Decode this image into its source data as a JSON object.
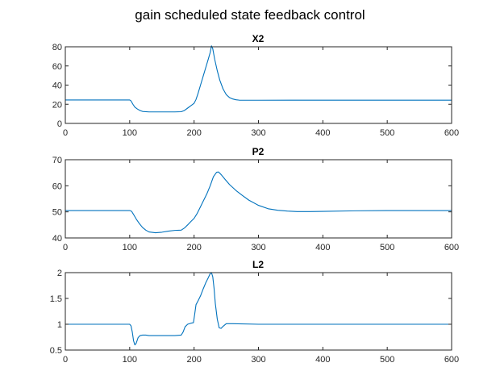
{
  "figure_title": "gain scheduled state feedback control",
  "colors": {
    "series": "#0072BD",
    "axes": "#262626"
  },
  "chart_data": [
    {
      "type": "line",
      "title": "X2",
      "xlim": [
        0,
        600
      ],
      "ylim": [
        0,
        80
      ],
      "xticks": [
        0,
        100,
        200,
        300,
        400,
        500,
        600
      ],
      "yticks": [
        0,
        20,
        40,
        60,
        80
      ],
      "grid": false,
      "series": [
        {
          "x": [
            0,
            100,
            102,
            105,
            108,
            112,
            116,
            120,
            130,
            150,
            170,
            180,
            185,
            190,
            195,
            200,
            203,
            206,
            210,
            214,
            218,
            222,
            225,
            227,
            229,
            232,
            236,
            240,
            245,
            250,
            255,
            260,
            265,
            270,
            280,
            300,
            350,
            400,
            500,
            600
          ],
          "y": [
            24.5,
            24.5,
            23.5,
            20,
            17,
            15,
            13.5,
            12.5,
            12,
            12,
            12,
            12.2,
            13.5,
            16,
            18.5,
            21,
            25,
            31,
            40,
            49,
            58,
            67,
            74,
            81,
            78,
            67,
            55,
            45,
            36,
            30,
            27,
            25.5,
            24.7,
            24.3,
            24.2,
            24.2,
            24.3,
            24.3,
            24.3,
            24.3
          ]
        }
      ]
    },
    {
      "type": "line",
      "title": "P2",
      "xlim": [
        0,
        600
      ],
      "ylim": [
        40,
        70
      ],
      "xticks": [
        0,
        100,
        200,
        300,
        400,
        500,
        600
      ],
      "yticks": [
        40,
        50,
        60,
        70
      ],
      "grid": false,
      "series": [
        {
          "x": [
            0,
            100,
            103,
            106,
            110,
            115,
            120,
            125,
            130,
            140,
            150,
            160,
            170,
            180,
            185,
            190,
            195,
            200,
            205,
            210,
            215,
            220,
            225,
            230,
            235,
            238,
            242,
            248,
            255,
            265,
            275,
            285,
            300,
            315,
            330,
            345,
            360,
            380,
            400,
            450,
            500,
            600
          ],
          "y": [
            50.5,
            50.5,
            50.2,
            49,
            47.3,
            45.5,
            44,
            43,
            42.3,
            42,
            42.2,
            42.6,
            42.9,
            43,
            43.8,
            45,
            46.3,
            47.5,
            49.5,
            52,
            54.5,
            57,
            60,
            63.5,
            65.2,
            65.3,
            64.3,
            62.5,
            60.5,
            58.2,
            56.3,
            54.5,
            52.5,
            51.2,
            50.6,
            50.3,
            50.1,
            50.1,
            50.2,
            50.4,
            50.5,
            50.5
          ]
        }
      ]
    },
    {
      "type": "line",
      "title": "L2",
      "xlim": [
        0,
        600
      ],
      "ylim": [
        0.5,
        2
      ],
      "xticks": [
        0,
        100,
        200,
        300,
        400,
        500,
        600
      ],
      "yticks": [
        0.5,
        1,
        1.5,
        2
      ],
      "grid": false,
      "series": [
        {
          "x": [
            0,
            100,
            102,
            104,
            106,
            108,
            110,
            113,
            116,
            120,
            125,
            130,
            150,
            170,
            180,
            183,
            186,
            190,
            195,
            199,
            201,
            203,
            206,
            210,
            214,
            218,
            222,
            225,
            227,
            229,
            231,
            233,
            236,
            239,
            242,
            245,
            250,
            260,
            300,
            400,
            500,
            600
          ],
          "y": [
            1.0,
            1.0,
            0.97,
            0.85,
            0.68,
            0.6,
            0.63,
            0.74,
            0.78,
            0.79,
            0.79,
            0.78,
            0.78,
            0.78,
            0.79,
            0.85,
            0.95,
            1.0,
            1.02,
            1.03,
            1.2,
            1.38,
            1.45,
            1.55,
            1.68,
            1.8,
            1.9,
            1.98,
            2.0,
            1.92,
            1.7,
            1.4,
            1.1,
            0.93,
            0.92,
            0.96,
            1.01,
            1.01,
            1.0,
            1.0,
            1.0,
            1.0
          ]
        }
      ]
    }
  ]
}
